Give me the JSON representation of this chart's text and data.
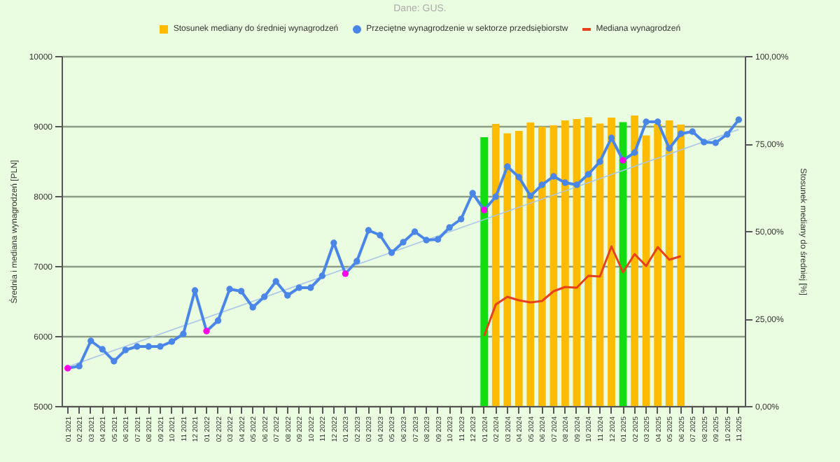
{
  "chart_data": {
    "type": "bar",
    "annotations": [
      "Dane: GUS."
    ],
    "ylabel": "Średnia i mediana wynagrodzeń [PLN]",
    "y2label": "Stosunek mediany do średniej [%]",
    "categories": [
      "01 2021",
      "02 2021",
      "03 2021",
      "04 2021",
      "05 2021",
      "06 2021",
      "07 2021",
      "08 2021",
      "09 2021",
      "10 2021",
      "11 2021",
      "12 2021",
      "01 2022",
      "02 2022",
      "03 2022",
      "04 2022",
      "05 2022",
      "06 2022",
      "07 2022",
      "08 2022",
      "09 2022",
      "10 2022",
      "11 2022",
      "12 2022",
      "01 2023",
      "02 2023",
      "03 2023",
      "04 2023",
      "05 2023",
      "06 2023",
      "07 2023",
      "08 2023",
      "09 2023",
      "10 2023",
      "11 2023",
      "12 2023",
      "01 2024",
      "02 2024",
      "03 2024",
      "04 2024",
      "05 2024",
      "06 2024",
      "07 2024",
      "08 2024",
      "09 2024",
      "10 2024",
      "11 2024",
      "12 2024",
      "01 2025",
      "02 2025",
      "03 2025",
      "04 2025",
      "05 2025",
      "06 2025",
      "07 2025",
      "08 2025",
      "09 2025",
      "10 2025",
      "11 2025"
    ],
    "series": [
      {
        "name": "Stosunek mediany do średniej wynagrodzeń",
        "axis": "y2",
        "color": "#ffbb00",
        "x": [
          "01 2024",
          "02 2024",
          "03 2024",
          "04 2024",
          "05 2024",
          "06 2024",
          "07 2024",
          "08 2024",
          "09 2024",
          "10 2024",
          "11 2024",
          "12 2024",
          "01 2025",
          "02 2025",
          "03 2025",
          "04 2025",
          "05 2025",
          "06 2025"
        ],
        "colors": [
          "#11dd11",
          "#ffbb00",
          "#ffbb00",
          "#ffbb00",
          "#ffbb00",
          "#ffbb00",
          "#ffbb00",
          "#ffbb00",
          "#ffbb00",
          "#ffbb00",
          "#ffbb00",
          "#ffbb00",
          "#11dd11",
          "#ffbb00",
          "#ffbb00",
          "#ffbb00",
          "#ffbb00",
          "#ffbb00"
        ],
        "values": [
          76.8,
          80.6,
          77.9,
          78.6,
          81.0,
          79.8,
          80.2,
          81.6,
          82.0,
          82.5,
          80.7,
          82.4,
          81.1,
          83.0,
          77.3,
          80.6,
          81.6,
          80.4
        ]
      },
      {
        "type": "line",
        "color": "#a9c6e8",
        "x": [
          "01 2021",
          "11 2025"
        ],
        "values": [
          5560,
          8950
        ]
      },
      {
        "name": "Przeciętne wynagrodzenie w sektorze przedsiębiorstw",
        "type": "line",
        "marker": "circle",
        "color": "#4a86e8",
        "colors": [
          "#ff00ee",
          "#4a86e8",
          "#4a86e8",
          "#4a86e8",
          "#4a86e8",
          "#4a86e8",
          "#4a86e8",
          "#4a86e8",
          "#4a86e8",
          "#4a86e8",
          "#4a86e8",
          "#4a86e8",
          "#ff00ee",
          "#4a86e8",
          "#4a86e8",
          "#4a86e8",
          "#4a86e8",
          "#4a86e8",
          "#4a86e8",
          "#4a86e8",
          "#4a86e8",
          "#4a86e8",
          "#4a86e8",
          "#4a86e8",
          "#ff00ee",
          "#4a86e8",
          "#4a86e8",
          "#4a86e8",
          "#4a86e8",
          "#4a86e8",
          "#4a86e8",
          "#4a86e8",
          "#4a86e8",
          "#4a86e8",
          "#4a86e8",
          "#4a86e8",
          "#ff00ee",
          "#4a86e8",
          "#4a86e8",
          "#4a86e8",
          "#4a86e8",
          "#4a86e8",
          "#4a86e8",
          "#4a86e8",
          "#4a86e8",
          "#4a86e8",
          "#4a86e8",
          "#4a86e8",
          "#ff00ee",
          "#4a86e8",
          "#4a86e8",
          "#4a86e8",
          "#4a86e8",
          "#4a86e8",
          "#4a86e8",
          "#4a86e8",
          "#4a86e8",
          "#4a86e8",
          "#4a86e8"
        ],
        "values": [
          5540,
          5570,
          5930,
          5810,
          5640,
          5800,
          5850,
          5850,
          5850,
          5920,
          6030,
          6650,
          6070,
          6220,
          6670,
          6640,
          6410,
          6560,
          6780,
          6580,
          6690,
          6690,
          6860,
          7330,
          6890,
          7070,
          7510,
          7440,
          7190,
          7340,
          7490,
          7370,
          7380,
          7550,
          7670,
          8040,
          7800,
          7990,
          8420,
          8270,
          8000,
          8160,
          8280,
          8190,
          8160,
          8310,
          8490,
          8830,
          8510,
          8620,
          9060,
          9060,
          8680,
          8890,
          8920,
          8770,
          8760,
          8880,
          9090
        ]
      },
      {
        "name": "Mediana wynagrodzeń",
        "type": "line",
        "color": "#e8401c",
        "x": [
          "01 2024",
          "02 2024",
          "03 2024",
          "04 2024",
          "05 2024",
          "06 2024",
          "07 2024",
          "08 2024",
          "09 2024",
          "10 2024",
          "11 2024",
          "12 2024",
          "01 2025",
          "02 2025",
          "03 2025",
          "04 2025",
          "05 2025",
          "06 2025"
        ],
        "values": [
          6000,
          6450,
          6560,
          6510,
          6480,
          6500,
          6640,
          6700,
          6690,
          6860,
          6850,
          7280,
          6910,
          7170,
          7000,
          7270,
          7090,
          7140
        ]
      }
    ],
    "ylim": [
      5000,
      10000
    ],
    "yticks": [
      5000,
      6000,
      7000,
      8000,
      9000,
      10000
    ],
    "y2lim": [
      0,
      100
    ],
    "y2ticks": [
      {
        "value": 0,
        "label": "0,00%"
      },
      {
        "value": 25,
        "label": "25,00%"
      },
      {
        "value": 50,
        "label": "50,00%"
      },
      {
        "value": 75,
        "label": "75,00%"
      },
      {
        "value": 100,
        "label": "100,00%"
      }
    ],
    "grid": "y",
    "legend": "top"
  }
}
